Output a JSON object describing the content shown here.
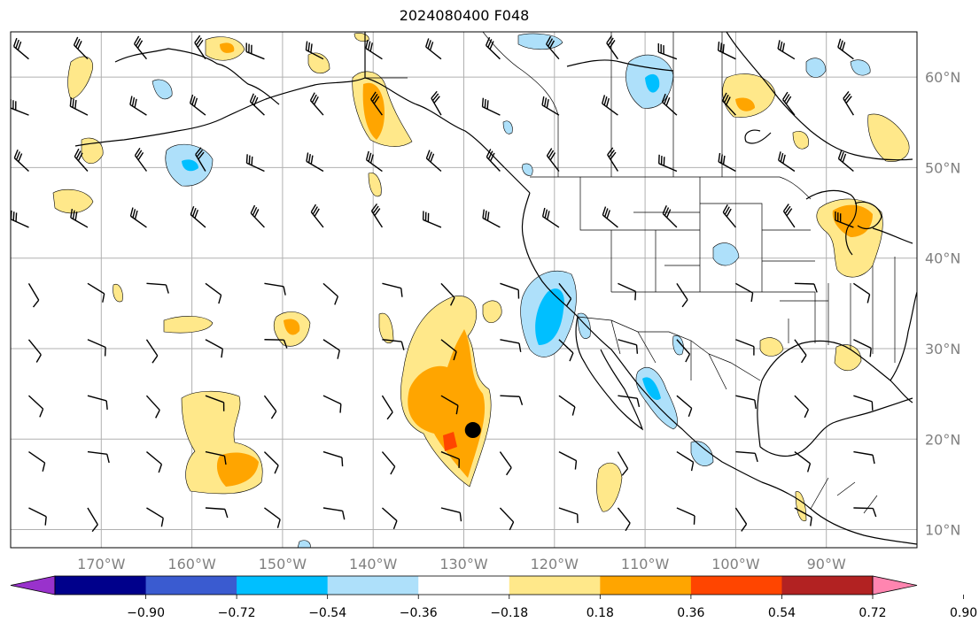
{
  "title": "2024080400 F048",
  "map": {
    "lon_range": [
      -180,
      -80
    ],
    "lat_range": [
      8,
      65
    ],
    "lon_labels": [
      {
        "lon": -170,
        "text": "170°W"
      },
      {
        "lon": -160,
        "text": "160°W"
      },
      {
        "lon": -150,
        "text": "150°W"
      },
      {
        "lon": -140,
        "text": "140°W"
      },
      {
        "lon": -130,
        "text": "130°W"
      },
      {
        "lon": -120,
        "text": "120°W"
      },
      {
        "lon": -110,
        "text": "110°W"
      },
      {
        "lon": -100,
        "text": "100°W"
      },
      {
        "lon": -90,
        "text": "90°W"
      }
    ],
    "lat_labels": [
      {
        "lat": 10,
        "text": "10°N"
      },
      {
        "lat": 20,
        "text": "20°N"
      },
      {
        "lat": 30,
        "text": "30°N"
      },
      {
        "lat": 40,
        "text": "40°N"
      },
      {
        "lat": 50,
        "text": "50°N"
      },
      {
        "lat": 60,
        "text": "60°N"
      }
    ],
    "grid": true,
    "storm_marker": {
      "lon": -129,
      "lat": 21
    }
  },
  "colorbar": {
    "colors": [
      "#9932cc",
      "#00008b",
      "#3a5bd0",
      "#00bfff",
      "#aee0fa",
      "#ffffff",
      "#ffe88a",
      "#ffa500",
      "#ff4500",
      "#b22222",
      "#ff85b0"
    ],
    "tick_labels": [
      "−0.90",
      "−0.72",
      "−0.54",
      "−0.36",
      "−0.18",
      "0.18",
      "0.36",
      "0.54",
      "0.72",
      "0.90"
    ],
    "extend": "both"
  },
  "colors": {
    "grid": "#b0b0b0",
    "tick_label": "#808080",
    "coast": "#000000",
    "marker": "#000000"
  }
}
